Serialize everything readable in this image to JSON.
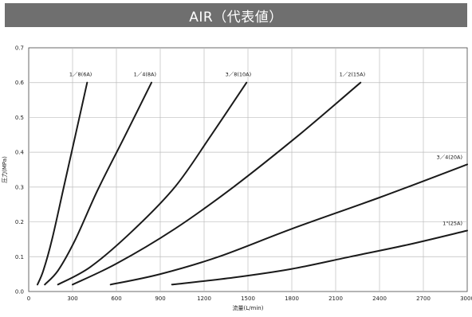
{
  "chart_data": {
    "type": "line",
    "title": "AIR（代表値）",
    "xlabel": "流量(L/min)",
    "ylabel": "圧力(MPa)",
    "xlim": [
      0,
      3000
    ],
    "ylim": [
      0,
      0.7
    ],
    "xticks": [
      0,
      300,
      600,
      900,
      1200,
      1500,
      1800,
      2100,
      2400,
      2700,
      3000
    ],
    "yticks": [
      0.0,
      0.1,
      0.2,
      0.3,
      0.4,
      0.5,
      0.6,
      0.7
    ],
    "xtick_labels": [
      "0",
      "300",
      "600",
      "900",
      "1200",
      "1500",
      "1800",
      "2100",
      "2400",
      "2700",
      "3000"
    ],
    "ytick_labels": [
      "0.0",
      "0.1",
      "0.2",
      "0.3",
      "0.4",
      "0.5",
      "0.6",
      "0.7"
    ],
    "grid": true,
    "colors": {
      "banner": "#6f6f6f",
      "grid": "#bdbdbd",
      "line": "#1a1a1a"
    },
    "series": [
      {
        "name": "1／8(6A)",
        "x": [
          60,
          100,
          160,
          240,
          320,
          400
        ],
        "y": [
          0.02,
          0.06,
          0.15,
          0.3,
          0.45,
          0.6
        ]
      },
      {
        "name": "1／4(8A)",
        "x": [
          110,
          200,
          320,
          470,
          650,
          840
        ],
        "y": [
          0.02,
          0.06,
          0.15,
          0.29,
          0.44,
          0.6
        ]
      },
      {
        "name": "3／8(10A)",
        "x": [
          200,
          420,
          700,
          1000,
          1250,
          1490
        ],
        "y": [
          0.02,
          0.07,
          0.17,
          0.3,
          0.45,
          0.6
        ]
      },
      {
        "name": "1／2(15A)",
        "x": [
          300,
          600,
          1000,
          1400,
          1850,
          2270
        ],
        "y": [
          0.02,
          0.08,
          0.18,
          0.3,
          0.45,
          0.6
        ]
      },
      {
        "name": "3／4(20A)",
        "x": [
          560,
          900,
          1300,
          1800,
          2400,
          3000
        ],
        "y": [
          0.02,
          0.05,
          0.1,
          0.18,
          0.27,
          0.365
        ]
      },
      {
        "name": "1\"(25A)",
        "x": [
          980,
          1400,
          1800,
          2200,
          2600,
          3000
        ],
        "y": [
          0.02,
          0.04,
          0.065,
          0.1,
          0.135,
          0.175
        ]
      }
    ]
  }
}
